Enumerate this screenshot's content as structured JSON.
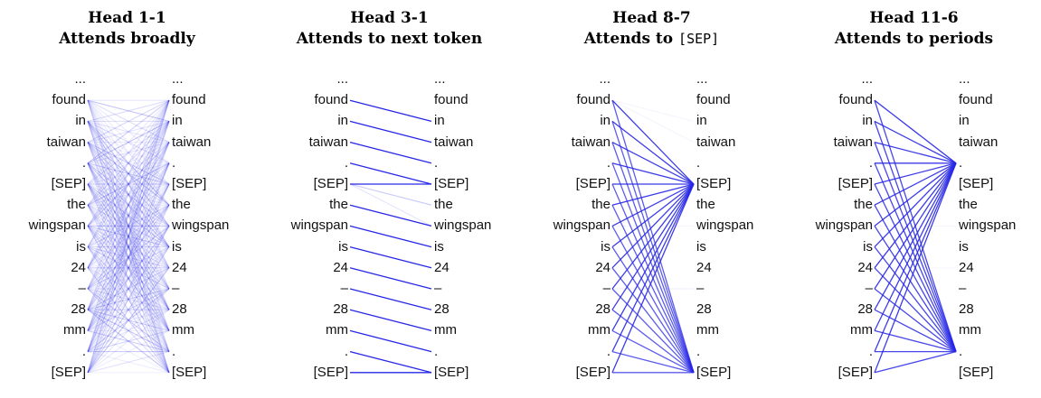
{
  "tokens": [
    "...",
    "found",
    "in",
    "taiwan",
    ".",
    "[SEP]",
    "the",
    "wingspan",
    "is",
    "24",
    "–",
    "28",
    "mm",
    ".",
    "[SEP]"
  ],
  "line_color": "#2727e6",
  "heads": [
    {
      "title": "Head 1-1",
      "subtitle_prefix": "Attends broadly",
      "subtitle_code": "",
      "pattern": "broad"
    },
    {
      "title": "Head 3-1",
      "subtitle_prefix": "Attends to next token",
      "subtitle_code": "",
      "pattern": "next_token"
    },
    {
      "title": "Head 8-7",
      "subtitle_prefix": "Attends to ",
      "subtitle_code": "[SEP]",
      "pattern": "sep"
    },
    {
      "title": "Head 11-6",
      "subtitle_prefix": "Attends to periods",
      "subtitle_code": "",
      "pattern": "periods"
    }
  ]
}
